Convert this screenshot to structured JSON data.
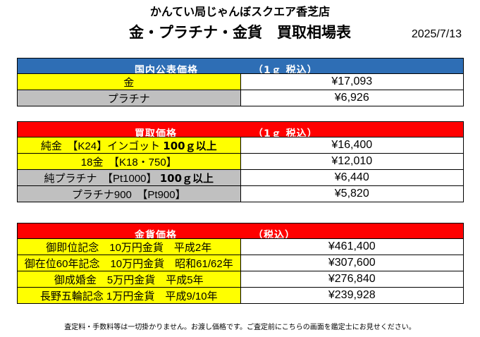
{
  "header": {
    "store_name": "かんてい局じゃんぼスクエア香芝店",
    "title": "金・プラチナ・金貨　買取相場表",
    "date": "2025/7/13"
  },
  "domestic": {
    "heading": "国内公表価格",
    "heading_note": "（1ｇ 税込）",
    "rows": [
      {
        "label": "金",
        "value": "¥17,093"
      },
      {
        "label": "プラチナ",
        "value": "¥6,926"
      }
    ]
  },
  "buy": {
    "heading": "買取価格",
    "heading_note": "（1ｇ 税込）",
    "rows": [
      {
        "label": "純金　【K24】インゴット",
        "label_bold": "100ｇ以上",
        "value": "¥16,400"
      },
      {
        "label": "18金　【K18・750】",
        "value": "¥12,010"
      },
      {
        "label": "純プラチナ　【Pt1000】",
        "label_bold": "100ｇ以上",
        "value": "¥6,440"
      },
      {
        "label": "プラチナ900　【Pt900】",
        "value": "¥5,820"
      }
    ]
  },
  "coins": {
    "heading": "金貨価格",
    "heading_note": "（税込）",
    "rows": [
      {
        "label": "御即位記念　10万円金貨　平成2年",
        "value": "¥461,400"
      },
      {
        "label": "御在位60年記念　10万円金貨　昭和61/62年",
        "value": "¥307,600"
      },
      {
        "label": "御成婚金　5万円金貨　平成5年",
        "value": "¥276,840"
      },
      {
        "label": "長野五輪記念 1万円金貨　平成9/10年",
        "value": "¥239,928"
      }
    ]
  },
  "footer": "査定料・手数料等は一切掛かりません。お渡し価格です。ご査定前にこちらの画面を鑑定士にお見せください。",
  "colors": {
    "gold_cell": "#ffff00",
    "gray_cell": "#c0c0c0",
    "blue_header": "#2e6eb5",
    "red_header": "#ff0000"
  }
}
